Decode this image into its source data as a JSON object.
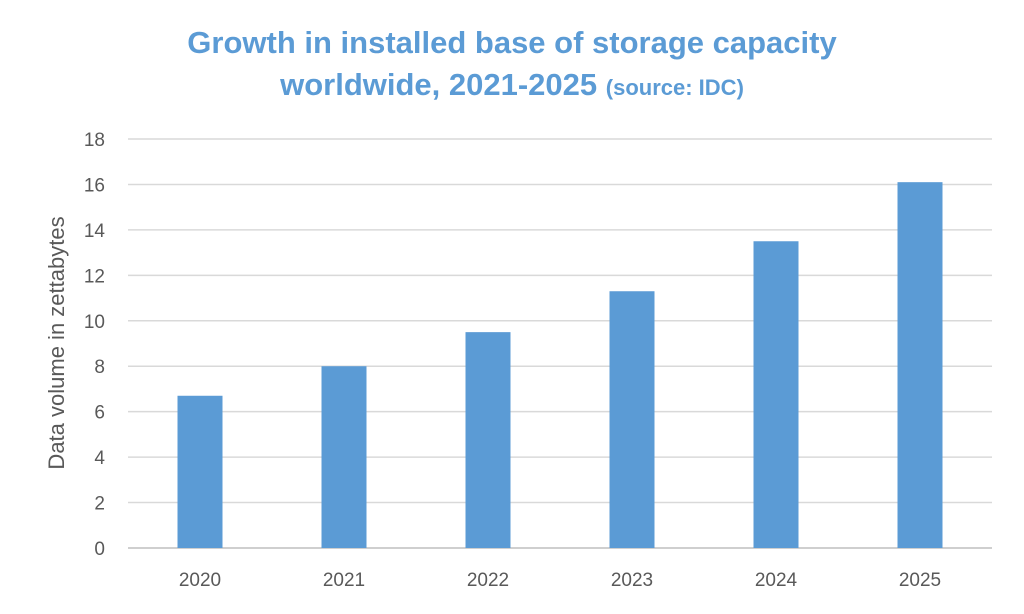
{
  "chart_data": {
    "type": "bar",
    "title_line1": "Growth in installed base of storage capacity",
    "title_line2": "worldwide, 2021-2025",
    "title_source": "(source: IDC)",
    "xlabel": "",
    "ylabel": "Data volume in zettabytes",
    "categories": [
      "2020",
      "2021",
      "2022",
      "2023",
      "2024",
      "2025"
    ],
    "values": [
      6.7,
      8.0,
      9.5,
      11.3,
      13.5,
      16.1
    ],
    "ylim": [
      0,
      18
    ],
    "yticks": [
      "0",
      "2",
      "4",
      "6",
      "8",
      "10",
      "12",
      "14",
      "16",
      "18"
    ],
    "grid": true,
    "legend": "none",
    "bar_color": "#5b9bd5",
    "title_color": "#5b9bd5"
  }
}
